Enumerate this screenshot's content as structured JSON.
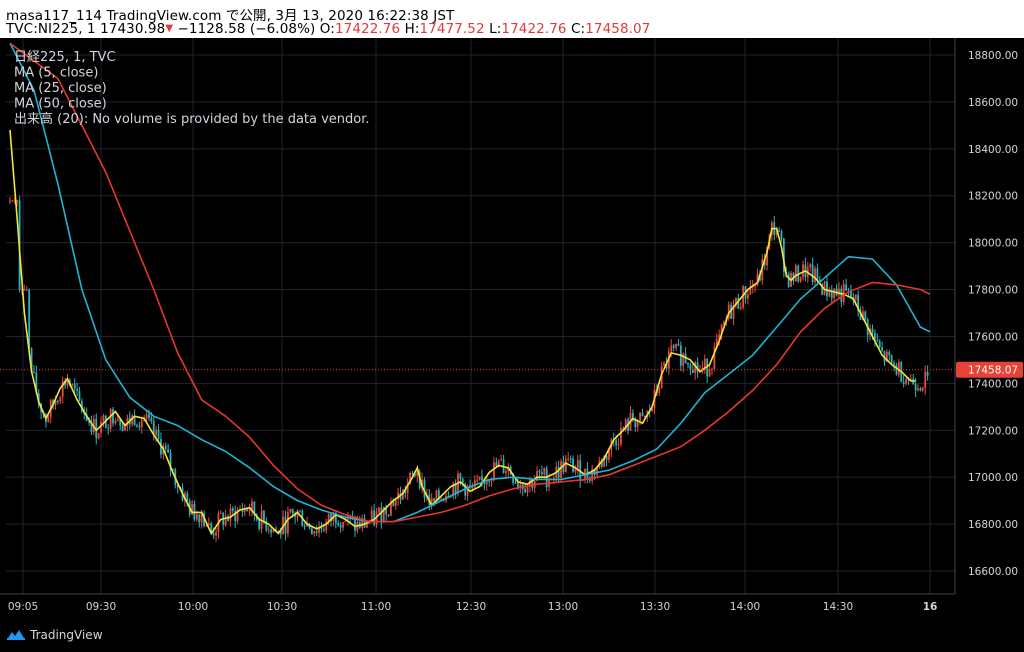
{
  "header": {
    "line1": "masa117_114 TradingView.com で公開, 3月 13, 2020 16:22:38 JST",
    "symbol": "TVC:NI225, 1",
    "last": "17430.98",
    "arrow": "▼",
    "change": "−1128.58 (−6.08%)",
    "o_label": "O:",
    "o_value": "17422.76",
    "h_label": "H:",
    "h_value": "17477.52",
    "l_label": "L:",
    "l_value": "17422.76",
    "c_label": "C:",
    "c_value": "17458.07"
  },
  "legend": [
    "日経225, 1, TVC",
    "MA (5, close)",
    "MA (25, close)",
    "MA (50, close)",
    "出来高 (20): No volume is provided by the data vendor."
  ],
  "footer": {
    "brand": "TradingView"
  },
  "colors": {
    "background": "#000000",
    "grid": "#1f2532",
    "up": "#e84a3c",
    "down": "#2bb3c0",
    "ma5": "#f5e53b",
    "ma25": "#1fb5d2",
    "ma50": "#e6372d",
    "price_line": "#e64236",
    "price_label_bg": "#e64236",
    "axis_text": "#d1d4dc"
  },
  "chart_data": {
    "type": "candlestick",
    "x_ticks": [
      "09:05",
      "09:30",
      "10:00",
      "10:30",
      "11:00",
      "12:30",
      "13:00",
      "13:30",
      "14:00",
      "14:30",
      "16"
    ],
    "y_ticks": [
      16600,
      16800,
      17000,
      17200,
      17400,
      17600,
      17800,
      18000,
      18200,
      18400,
      18600,
      18800
    ],
    "ylim": [
      16520,
      18880
    ],
    "current_price": 17458.07,
    "current_price_label": "17458.07",
    "series": [
      {
        "name": "MA (5, close)",
        "points": [
          [
            0,
            18480
          ],
          [
            3,
            18100
          ],
          [
            6,
            17700
          ],
          [
            9,
            17450
          ],
          [
            12,
            17320
          ],
          [
            15,
            17250
          ],
          [
            18,
            17310
          ],
          [
            21,
            17380
          ],
          [
            24,
            17420
          ],
          [
            28,
            17330
          ],
          [
            32,
            17260
          ],
          [
            36,
            17200
          ],
          [
            40,
            17240
          ],
          [
            44,
            17280
          ],
          [
            48,
            17220
          ],
          [
            52,
            17260
          ],
          [
            56,
            17250
          ],
          [
            60,
            17180
          ],
          [
            64,
            17120
          ],
          [
            68,
            17020
          ],
          [
            72,
            16930
          ],
          [
            76,
            16850
          ],
          [
            80,
            16850
          ],
          [
            84,
            16760
          ],
          [
            88,
            16820
          ],
          [
            92,
            16830
          ],
          [
            96,
            16860
          ],
          [
            100,
            16870
          ],
          [
            104,
            16820
          ],
          [
            108,
            16800
          ],
          [
            112,
            16760
          ],
          [
            116,
            16820
          ],
          [
            120,
            16850
          ],
          [
            124,
            16800
          ],
          [
            128,
            16780
          ],
          [
            132,
            16800
          ],
          [
            136,
            16840
          ],
          [
            140,
            16820
          ],
          [
            144,
            16790
          ],
          [
            148,
            16800
          ],
          [
            152,
            16820
          ],
          [
            156,
            16860
          ],
          [
            160,
            16900
          ],
          [
            164,
            16930
          ],
          [
            168,
            17000
          ],
          [
            170,
            17040
          ],
          [
            172,
            16960
          ],
          [
            176,
            16880
          ],
          [
            180,
            16920
          ],
          [
            184,
            16960
          ],
          [
            188,
            16980
          ],
          [
            192,
            16940
          ],
          [
            196,
            16960
          ],
          [
            200,
            17020
          ],
          [
            204,
            17050
          ],
          [
            208,
            17040
          ],
          [
            212,
            16980
          ],
          [
            216,
            16970
          ],
          [
            220,
            17000
          ],
          [
            224,
            17000
          ],
          [
            228,
            17020
          ],
          [
            232,
            17060
          ],
          [
            236,
            17040
          ],
          [
            240,
            17010
          ],
          [
            244,
            17030
          ],
          [
            248,
            17080
          ],
          [
            252,
            17160
          ],
          [
            256,
            17200
          ],
          [
            260,
            17250
          ],
          [
            264,
            17230
          ],
          [
            268,
            17300
          ],
          [
            272,
            17440
          ],
          [
            276,
            17530
          ],
          [
            280,
            17520
          ],
          [
            284,
            17500
          ],
          [
            288,
            17450
          ],
          [
            292,
            17480
          ],
          [
            296,
            17580
          ],
          [
            300,
            17700
          ],
          [
            304,
            17750
          ],
          [
            308,
            17800
          ],
          [
            312,
            17830
          ],
          [
            316,
            17960
          ],
          [
            318,
            18060
          ],
          [
            320,
            18060
          ],
          [
            322,
            17980
          ],
          [
            324,
            17860
          ],
          [
            326,
            17840
          ],
          [
            328,
            17860
          ],
          [
            332,
            17880
          ],
          [
            336,
            17850
          ],
          [
            340,
            17800
          ],
          [
            344,
            17790
          ],
          [
            348,
            17780
          ],
          [
            352,
            17760
          ],
          [
            356,
            17680
          ],
          [
            360,
            17600
          ],
          [
            364,
            17520
          ],
          [
            368,
            17480
          ],
          [
            372,
            17450
          ],
          [
            376,
            17410
          ],
          [
            378,
            17410
          ]
        ]
      },
      {
        "name": "MA (25, close)",
        "points": [
          [
            0,
            18850
          ],
          [
            10,
            18650
          ],
          [
            20,
            18250
          ],
          [
            30,
            17800
          ],
          [
            40,
            17500
          ],
          [
            50,
            17340
          ],
          [
            60,
            17260
          ],
          [
            70,
            17220
          ],
          [
            80,
            17160
          ],
          [
            90,
            17110
          ],
          [
            100,
            17040
          ],
          [
            110,
            16960
          ],
          [
            120,
            16900
          ],
          [
            130,
            16860
          ],
          [
            140,
            16830
          ],
          [
            150,
            16810
          ],
          [
            160,
            16810
          ],
          [
            170,
            16850
          ],
          [
            180,
            16900
          ],
          [
            190,
            16950
          ],
          [
            200,
            16990
          ],
          [
            210,
            17000
          ],
          [
            220,
            16990
          ],
          [
            230,
            16990
          ],
          [
            240,
            17010
          ],
          [
            250,
            17030
          ],
          [
            260,
            17070
          ],
          [
            270,
            17120
          ],
          [
            280,
            17230
          ],
          [
            290,
            17360
          ],
          [
            300,
            17440
          ],
          [
            310,
            17520
          ],
          [
            320,
            17640
          ],
          [
            330,
            17760
          ],
          [
            340,
            17850
          ],
          [
            350,
            17940
          ],
          [
            360,
            17930
          ],
          [
            370,
            17820
          ],
          [
            380,
            17640
          ],
          [
            384,
            17620
          ]
        ]
      },
      {
        "name": "MA (50, close)",
        "points": [
          [
            0,
            18850
          ],
          [
            20,
            18700
          ],
          [
            40,
            18300
          ],
          [
            60,
            17800
          ],
          [
            70,
            17530
          ],
          [
            80,
            17330
          ],
          [
            90,
            17260
          ],
          [
            100,
            17170
          ],
          [
            110,
            17050
          ],
          [
            120,
            16950
          ],
          [
            130,
            16880
          ],
          [
            140,
            16840
          ],
          [
            150,
            16810
          ],
          [
            160,
            16810
          ],
          [
            170,
            16830
          ],
          [
            180,
            16850
          ],
          [
            190,
            16880
          ],
          [
            200,
            16920
          ],
          [
            210,
            16950
          ],
          [
            220,
            16970
          ],
          [
            230,
            16980
          ],
          [
            240,
            16990
          ],
          [
            250,
            17010
          ],
          [
            260,
            17050
          ],
          [
            270,
            17090
          ],
          [
            280,
            17130
          ],
          [
            290,
            17200
          ],
          [
            300,
            17280
          ],
          [
            310,
            17370
          ],
          [
            320,
            17480
          ],
          [
            330,
            17620
          ],
          [
            340,
            17720
          ],
          [
            350,
            17790
          ],
          [
            360,
            17830
          ],
          [
            370,
            17820
          ],
          [
            380,
            17800
          ],
          [
            384,
            17780
          ]
        ]
      }
    ]
  }
}
